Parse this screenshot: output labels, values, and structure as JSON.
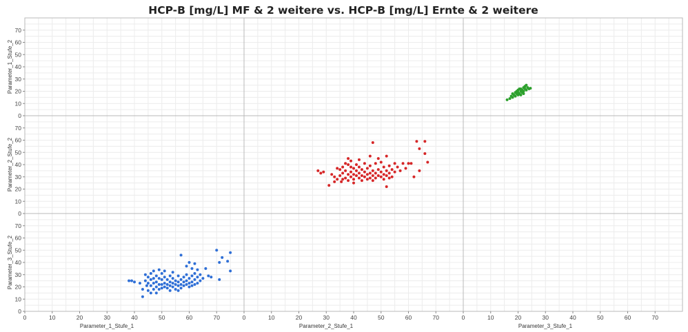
{
  "chart_data": {
    "type": "scatter",
    "title": "HCP-B [mg/L] MF & 2 weitere vs. HCP-B [mg/L] Ernte & 2 weitere",
    "grid": true,
    "legend": "none",
    "x_panels": [
      {
        "label": "Parameter_1_Stufe_1",
        "ticks": [
          0,
          10,
          20,
          30,
          40,
          50,
          60,
          70
        ],
        "xlim": [
          0,
          80
        ]
      },
      {
        "label": "Parameter_2_Stufe_1",
        "ticks": [
          0,
          10,
          20,
          30,
          40,
          50,
          60,
          70
        ],
        "xlim": [
          0,
          80
        ]
      },
      {
        "label": "Parameter_3_Stufe_1",
        "ticks": [
          0,
          10,
          20,
          30,
          40,
          50,
          60,
          70
        ],
        "xlim": [
          0,
          80
        ]
      }
    ],
    "y_panels": [
      {
        "label": "Parameter_1_Stufe_2",
        "ticks": [
          0,
          10,
          20,
          30,
          40,
          50,
          60,
          70
        ],
        "ylim": [
          0,
          80
        ]
      },
      {
        "label": "Parameter_2_Stufe_2",
        "ticks": [
          0,
          10,
          20,
          30,
          40,
          50,
          60,
          70
        ],
        "ylim": [
          0,
          80
        ]
      },
      {
        "label": "Parameter_3_Stufe_2",
        "ticks": [
          0,
          10,
          20,
          30,
          40,
          50,
          60,
          70
        ],
        "ylim": [
          0,
          80
        ]
      }
    ],
    "series": [
      {
        "panel_x": 2,
        "panel_y": 0,
        "color": "#2ca02c",
        "points": [
          [
            16,
            13
          ],
          [
            17,
            14
          ],
          [
            17.5,
            16
          ],
          [
            18,
            18
          ],
          [
            18,
            15
          ],
          [
            18.5,
            17
          ],
          [
            19,
            19
          ],
          [
            19,
            16
          ],
          [
            19.5,
            18
          ],
          [
            19.5,
            20
          ],
          [
            20,
            21
          ],
          [
            20,
            19
          ],
          [
            20,
            17
          ],
          [
            20.5,
            22
          ],
          [
            20.5,
            18
          ],
          [
            21,
            20
          ],
          [
            21,
            22
          ],
          [
            21,
            17
          ],
          [
            21.5,
            19
          ],
          [
            21.5,
            21
          ],
          [
            22,
            23
          ],
          [
            22,
            20
          ],
          [
            22,
            18
          ],
          [
            22.5,
            22
          ],
          [
            22.5,
            24
          ],
          [
            23,
            21
          ],
          [
            23,
            25
          ],
          [
            23.5,
            23
          ],
          [
            24,
            22
          ],
          [
            24.5,
            22.5
          ]
        ]
      },
      {
        "panel_x": 1,
        "panel_y": 1,
        "color": "#d62728",
        "points": [
          [
            27,
            35
          ],
          [
            28,
            33
          ],
          [
            29,
            34
          ],
          [
            31,
            23
          ],
          [
            32,
            32
          ],
          [
            33,
            30
          ],
          [
            33,
            26
          ],
          [
            34,
            37
          ],
          [
            34,
            28
          ],
          [
            35,
            36
          ],
          [
            35,
            31
          ],
          [
            35.5,
            26
          ],
          [
            36,
            38
          ],
          [
            36,
            33
          ],
          [
            36,
            28
          ],
          [
            37,
            41
          ],
          [
            37,
            35
          ],
          [
            37,
            29
          ],
          [
            38,
            45
          ],
          [
            38,
            40
          ],
          [
            38,
            32
          ],
          [
            38,
            27
          ],
          [
            39,
            43
          ],
          [
            39,
            38
          ],
          [
            39,
            34
          ],
          [
            39,
            30
          ],
          [
            40,
            37
          ],
          [
            40,
            32
          ],
          [
            40,
            28
          ],
          [
            40,
            25
          ],
          [
            41,
            40
          ],
          [
            41,
            35
          ],
          [
            41,
            31
          ],
          [
            42,
            44
          ],
          [
            42,
            38
          ],
          [
            42,
            33
          ],
          [
            42,
            29
          ],
          [
            43,
            36
          ],
          [
            43,
            31
          ],
          [
            43,
            27
          ],
          [
            44,
            41
          ],
          [
            44,
            34
          ],
          [
            44,
            30
          ],
          [
            45,
            37
          ],
          [
            45,
            32
          ],
          [
            45,
            28
          ],
          [
            46,
            47
          ],
          [
            46,
            39
          ],
          [
            46,
            33
          ],
          [
            46,
            29
          ],
          [
            47,
            58
          ],
          [
            47,
            35
          ],
          [
            47,
            31
          ],
          [
            47,
            27
          ],
          [
            48,
            41
          ],
          [
            48,
            33
          ],
          [
            48,
            29
          ],
          [
            49,
            45
          ],
          [
            49,
            36
          ],
          [
            49,
            31
          ],
          [
            50,
            42
          ],
          [
            50,
            34
          ],
          [
            50,
            30
          ],
          [
            51,
            38
          ],
          [
            51,
            32
          ],
          [
            51,
            28
          ],
          [
            52,
            47
          ],
          [
            52,
            35
          ],
          [
            52,
            31
          ],
          [
            52,
            22
          ],
          [
            53,
            39
          ],
          [
            53,
            33
          ],
          [
            53,
            29
          ],
          [
            54,
            36
          ],
          [
            54,
            30
          ],
          [
            55,
            41
          ],
          [
            55,
            34
          ],
          [
            56,
            38
          ],
          [
            57,
            35
          ],
          [
            58,
            41
          ],
          [
            59,
            37
          ],
          [
            60,
            41
          ],
          [
            61,
            41
          ],
          [
            62,
            30
          ],
          [
            63,
            59
          ],
          [
            64,
            53
          ],
          [
            64,
            35
          ],
          [
            66,
            59
          ],
          [
            66,
            49
          ],
          [
            67,
            42
          ]
        ]
      },
      {
        "panel_x": 0,
        "panel_y": 2,
        "color": "#2f6fd6",
        "points": [
          [
            38,
            25
          ],
          [
            39,
            25
          ],
          [
            40,
            24
          ],
          [
            42,
            23
          ],
          [
            43,
            12
          ],
          [
            43,
            18
          ],
          [
            44,
            30
          ],
          [
            44,
            25
          ],
          [
            44.5,
            21
          ],
          [
            45,
            28
          ],
          [
            45,
            23
          ],
          [
            45,
            17
          ],
          [
            46,
            31
          ],
          [
            46,
            26
          ],
          [
            46,
            21
          ],
          [
            46,
            15
          ],
          [
            47,
            33
          ],
          [
            47,
            27
          ],
          [
            47,
            23
          ],
          [
            47,
            18
          ],
          [
            48,
            29
          ],
          [
            48,
            24
          ],
          [
            48,
            20
          ],
          [
            48,
            15
          ],
          [
            49,
            34
          ],
          [
            49,
            27
          ],
          [
            49,
            22
          ],
          [
            49,
            18
          ],
          [
            50,
            31
          ],
          [
            50,
            26
          ],
          [
            50,
            22
          ],
          [
            50,
            19
          ],
          [
            51,
            33
          ],
          [
            51,
            28
          ],
          [
            51,
            23
          ],
          [
            51,
            20
          ],
          [
            52,
            26
          ],
          [
            52,
            22
          ],
          [
            52,
            19
          ],
          [
            53,
            29
          ],
          [
            53,
            24
          ],
          [
            53,
            21
          ],
          [
            53,
            17
          ],
          [
            54,
            32
          ],
          [
            54,
            27
          ],
          [
            54,
            23
          ],
          [
            54,
            20
          ],
          [
            55,
            25
          ],
          [
            55,
            22
          ],
          [
            55,
            18
          ],
          [
            56,
            29
          ],
          [
            56,
            24
          ],
          [
            56,
            21
          ],
          [
            56,
            17
          ],
          [
            57,
            46
          ],
          [
            57,
            26
          ],
          [
            57,
            22
          ],
          [
            57,
            19
          ],
          [
            58,
            28
          ],
          [
            58,
            24
          ],
          [
            58,
            21
          ],
          [
            59,
            37
          ],
          [
            59,
            30
          ],
          [
            59,
            25
          ],
          [
            59,
            22
          ],
          [
            60,
            40
          ],
          [
            60,
            27
          ],
          [
            60,
            23
          ],
          [
            60,
            20
          ],
          [
            61,
            35
          ],
          [
            61,
            29
          ],
          [
            61,
            24
          ],
          [
            61,
            21
          ],
          [
            62,
            39
          ],
          [
            62,
            31
          ],
          [
            62,
            26
          ],
          [
            62,
            22
          ],
          [
            63,
            34
          ],
          [
            63,
            28
          ],
          [
            63,
            23
          ],
          [
            64,
            30
          ],
          [
            64,
            25
          ],
          [
            65,
            27
          ],
          [
            66,
            35
          ],
          [
            67,
            29
          ],
          [
            68,
            28
          ],
          [
            70,
            50
          ],
          [
            71,
            40
          ],
          [
            71,
            26
          ],
          [
            72,
            44
          ],
          [
            74,
            41
          ],
          [
            75,
            48
          ],
          [
            75,
            33
          ]
        ]
      }
    ]
  }
}
